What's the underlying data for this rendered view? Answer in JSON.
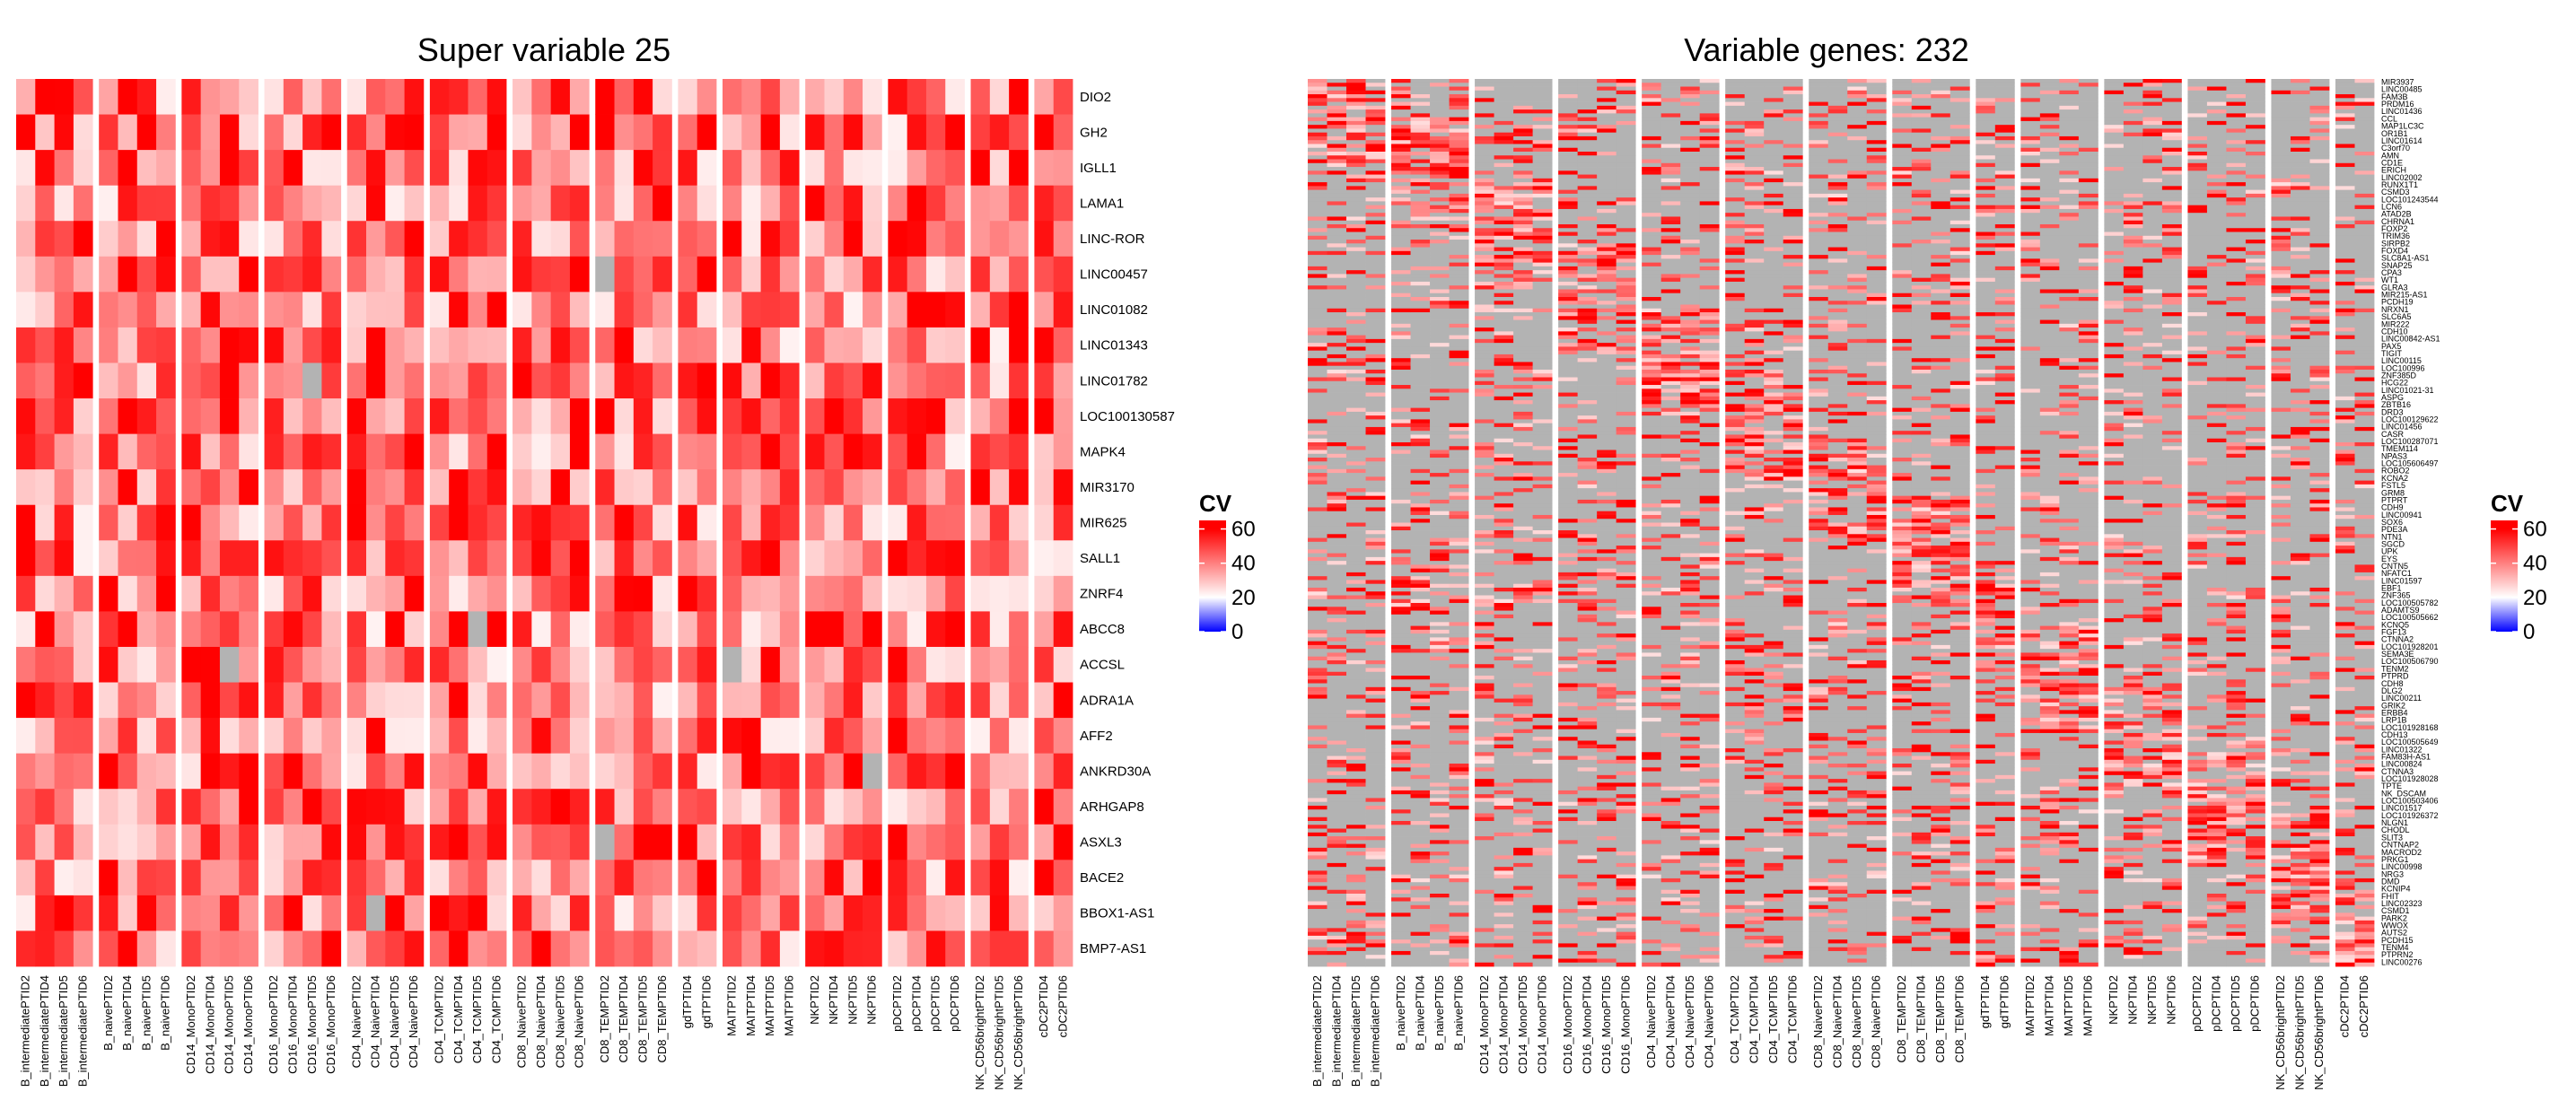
{
  "colors": {
    "low": "#0000ff",
    "mid": "#ffffff",
    "high": "#ff0000",
    "na": "#b3b3b3"
  },
  "chart_data": [
    {
      "type": "heatmap",
      "title": "Super variable 25",
      "rows": [
        "DIO2",
        "GH2",
        "IGLL1",
        "LAMA1",
        "LINC-ROR",
        "LINC00457",
        "LINC01082",
        "LINC01343",
        "LINC01782",
        "LOC100130587",
        "MAPK4",
        "MIR3170",
        "MIR625",
        "SALL1",
        "ZNRF4",
        "ABCC8",
        "ACCSL",
        "ADRA1A",
        "AFF2",
        "ANKRD30A",
        "ARHGAP8",
        "ASXL3",
        "BACE2",
        "BBOX1-AS1",
        "BMP7-AS1"
      ],
      "groups": [
        {
          "name": "B_intermediate",
          "columns": [
            "B_intermediatePTID2",
            "B_intermediatePTID4",
            "B_intermediatePTID5",
            "B_intermediatePTID6"
          ]
        },
        {
          "name": "B_naive",
          "columns": [
            "B_naivePTID2",
            "B_naivePTID4",
            "B_naivePTID5",
            "B_naivePTID6"
          ]
        },
        {
          "name": "CD14_Mono",
          "columns": [
            "CD14_MonoPTID2",
            "CD14_MonoPTID4",
            "CD14_MonoPTID5",
            "CD14_MonoPTID6"
          ]
        },
        {
          "name": "CD16_Mono",
          "columns": [
            "CD16_MonoPTID2",
            "CD16_MonoPTID4",
            "CD16_MonoPTID5",
            "CD16_MonoPTID6"
          ]
        },
        {
          "name": "CD4_Naive",
          "columns": [
            "CD4_NaivePTID2",
            "CD4_NaivePTID4",
            "CD4_NaivePTID5",
            "CD4_NaivePTID6"
          ]
        },
        {
          "name": "CD4_TCM",
          "columns": [
            "CD4_TCMPTID2",
            "CD4_TCMPTID4",
            "CD4_TCMPTID5",
            "CD4_TCMPTID6"
          ]
        },
        {
          "name": "CD8_Naive",
          "columns": [
            "CD8_NaivePTID2",
            "CD8_NaivePTID4",
            "CD8_NaivePTID5",
            "CD8_NaivePTID6"
          ]
        },
        {
          "name": "CD8_TEM",
          "columns": [
            "CD8_TEMPTID2",
            "CD8_TEMPTID4",
            "CD8_TEMPTID5",
            "CD8_TEMPTID6"
          ]
        },
        {
          "name": "gdT",
          "columns": [
            "gdTPTID4",
            "gdTPTID6"
          ]
        },
        {
          "name": "MAIT",
          "columns": [
            "MAITPTID2",
            "MAITPTID4",
            "MAITPTID5",
            "MAITPTID6"
          ]
        },
        {
          "name": "NK",
          "columns": [
            "NKPTID2",
            "NKPTID4",
            "NKPTID5",
            "NKPTID6"
          ]
        },
        {
          "name": "pDC",
          "columns": [
            "pDCPTID2",
            "pDCPTID4",
            "pDCPTID5",
            "pDCPTID6"
          ]
        },
        {
          "name": "NK_CD56bright",
          "columns": [
            "NK_CD56brightPTID2",
            "NK_CD56brightPTID5",
            "NK_CD56brightPTID6"
          ]
        },
        {
          "name": "cDC2",
          "columns": [
            "cDC2PTID4",
            "cDC2PTID6"
          ]
        }
      ],
      "value_range": [
        0,
        65
      ],
      "legend": {
        "title": "CV",
        "ticks": [
          0,
          20,
          40,
          60
        ],
        "placement": "right"
      },
      "na_color_present": true,
      "values_note": "CV per gene x sample; mostly 20–65, few NA cells",
      "seed": 25
    },
    {
      "type": "heatmap",
      "title": "Variable genes: 232",
      "row_count": 232,
      "visible_row_labels": [
        "MIR3937",
        "LINC00485",
        "FAM3B",
        "PRDM16",
        "LINC01436",
        "CCL",
        "MAP1LC3C",
        "OR1B1",
        "LINC01614",
        "C3orf70",
        "AMN",
        "CD1E",
        "ERICH",
        "LINC02002",
        "RUNX1T1",
        "CSMD3",
        "LOC101243544",
        "LCN6",
        "ATAD2B",
        "CHRNA1",
        "FOXP2",
        "TRIM36",
        "SIRPB2",
        "FOXD4",
        "SLC8A1-AS1",
        "SNAP25",
        "CPA3",
        "WT1",
        "GLRA3",
        "MIR215-AS1",
        "PCDH19",
        "NRXN1",
        "SLC6A5",
        "MIR222",
        "CDH10",
        "LINC00842-AS1",
        "PAX5",
        "TIGIT",
        "LINC00115",
        "LOC100996",
        "ZNF385D",
        "HCG22",
        "LINC01021-31",
        "ASPG",
        "ZBTB16",
        "DRD3",
        "LOC100129622",
        "LINC01456",
        "CASR",
        "LOC100287071",
        "TMEM114",
        "NPAS3",
        "LOC105606497",
        "ROBO2",
        "KCNA2",
        "FSTL5",
        "GRM8",
        "PTPRT",
        "CDH9",
        "LINC00941",
        "SOX6",
        "PDE3A",
        "NTN1",
        "SGCD",
        "UPK",
        "EYS",
        "CNTN5",
        "NFATC1",
        "LINC01597",
        "EBF1",
        "ZNF365",
        "LOC100505782",
        "ADAMTS9",
        "LOC100505662",
        "KCNQ5",
        "FGF13",
        "CTNNA2",
        "LOC101928201",
        "SEMA3E",
        "LOC100506790",
        "TENM2",
        "PTPRD",
        "CDH8",
        "DLG2",
        "LINC00211",
        "GRIK2",
        "ERBB4",
        "LRP1B",
        "LOC101928168",
        "CDH13",
        "LOC100505649",
        "LINC01322",
        "FAM83H-AS1",
        "LINC00824",
        "CTNNA3",
        "LOC101928028",
        "TPTE",
        "NK_DSCAM",
        "LOC100503406",
        "LINC01517",
        "LOC101926372",
        "NLGN1",
        "CHODL",
        "SLIT3",
        "CNTNAP2",
        "MACROD2",
        "PRKG1",
        "LINC00998",
        "NRG3",
        "DMD",
        "KCNIP4",
        "FHIT",
        "LINC02323",
        "CSMD1",
        "PARK2",
        "WWOX",
        "AUTS2",
        "PCDH15",
        "TENM4",
        "PTPRN2",
        "LINC00276"
      ],
      "groups": [
        {
          "name": "B_intermediate",
          "columns": [
            "B_intermediatePTID2",
            "B_intermediatePTID4",
            "B_intermediatePTID5",
            "B_intermediatePTID6"
          ]
        },
        {
          "name": "B_naive",
          "columns": [
            "B_naivePTID2",
            "B_naivePTID4",
            "B_naivePTID5",
            "B_naivePTID6"
          ]
        },
        {
          "name": "CD14_Mono",
          "columns": [
            "CD14_MonoPTID2",
            "CD14_MonoPTID4",
            "CD14_MonoPTID5",
            "CD14_MonoPTID6"
          ]
        },
        {
          "name": "CD16_Mono",
          "columns": [
            "CD16_MonoPTID2",
            "CD16_MonoPTID4",
            "CD16_MonoPTID5",
            "CD16_MonoPTID6"
          ]
        },
        {
          "name": "CD4_Naive",
          "columns": [
            "CD4_NaivePTID2",
            "CD4_NaivePTID4",
            "CD4_NaivePTID5",
            "CD4_NaivePTID6"
          ]
        },
        {
          "name": "CD4_TCM",
          "columns": [
            "CD4_TCMPTID2",
            "CD4_TCMPTID4",
            "CD4_TCMPTID5",
            "CD4_TCMPTID6"
          ]
        },
        {
          "name": "CD8_Naive",
          "columns": [
            "CD8_NaivePTID2",
            "CD8_NaivePTID4",
            "CD8_NaivePTID5",
            "CD8_NaivePTID6"
          ]
        },
        {
          "name": "CD8_TEM",
          "columns": [
            "CD8_TEMPTID2",
            "CD8_TEMPTID4",
            "CD8_TEMPTID5",
            "CD8_TEMPTID6"
          ]
        },
        {
          "name": "gdT",
          "columns": [
            "gdTPTID4",
            "gdTPTID6"
          ]
        },
        {
          "name": "MAIT",
          "columns": [
            "MAITPTID2",
            "MAITPTID4",
            "MAITPTID5",
            "MAITPTID6"
          ]
        },
        {
          "name": "NK",
          "columns": [
            "NKPTID2",
            "NKPTID4",
            "NKPTID5",
            "NKPTID6"
          ]
        },
        {
          "name": "pDC",
          "columns": [
            "pDCPTID2",
            "pDCPTID4",
            "pDCPTID5",
            "pDCPTID6"
          ]
        },
        {
          "name": "NK_CD56bright",
          "columns": [
            "NK_CD56brightPTID2",
            "NK_CD56brightPTID5",
            "NK_CD56brightPTID6"
          ]
        },
        {
          "name": "cDC2",
          "columns": [
            "cDC2PTID4",
            "cDC2PTID6"
          ]
        }
      ],
      "value_range": [
        0,
        65
      ],
      "legend": {
        "title": "CV",
        "ticks": [
          0,
          20,
          40,
          60
        ],
        "placement": "right"
      },
      "na_color_present": true,
      "values_note": "Sparse matrix: most cells NA (grey); high-CV blocks per cell type along diagonal",
      "seed": 232
    }
  ]
}
